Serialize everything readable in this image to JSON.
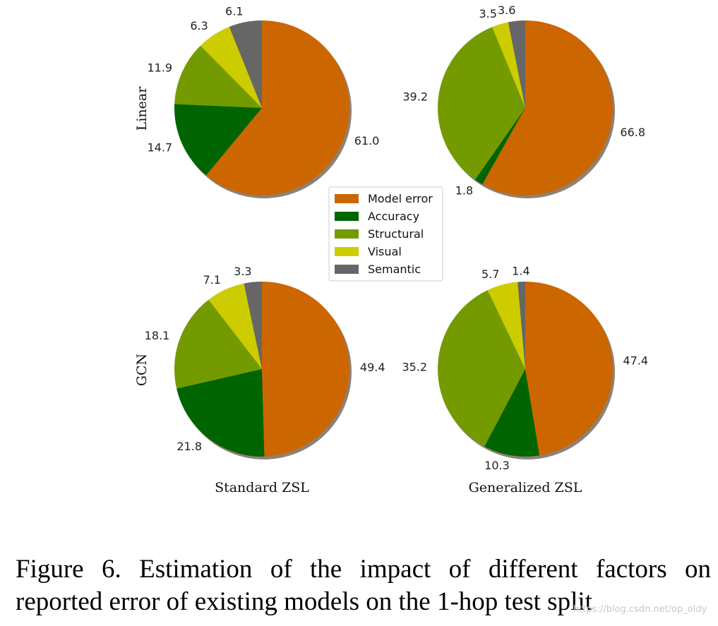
{
  "chart_data": {
    "type": "pie",
    "legend": {
      "placement": "center",
      "entries": [
        {
          "name": "Model error",
          "color": "#cc6600"
        },
        {
          "name": "Accuracy",
          "color": "#006400"
        },
        {
          "name": "Structural",
          "color": "#739b00"
        },
        {
          "name": "Visual",
          "color": "#cccc00"
        },
        {
          "name": "Semantic",
          "color": "#666666"
        }
      ]
    },
    "row_labels": [
      "Linear",
      "GCN"
    ],
    "column_labels": [
      "Standard ZSL",
      "Generalized ZSL"
    ],
    "pies": [
      {
        "row": "Linear",
        "column": "Standard ZSL",
        "values": {
          "Semantic": 6.1,
          "Visual": 6.3,
          "Structural": 11.9,
          "Accuracy": 14.7,
          "Model error": 61.0
        }
      },
      {
        "row": "Linear",
        "column": "Generalized ZSL",
        "values": {
          "Semantic": 3.6,
          "Visual": 3.5,
          "Structural": 39.2,
          "Accuracy": 1.8,
          "Model error": 66.8
        }
      },
      {
        "row": "GCN",
        "column": "Standard ZSL",
        "values": {
          "Semantic": 3.3,
          "Visual": 7.1,
          "Structural": 18.1,
          "Accuracy": 21.8,
          "Model error": 49.4
        }
      },
      {
        "row": "GCN",
        "column": "Generalized ZSL",
        "values": {
          "Semantic": 1.4,
          "Visual": 5.7,
          "Structural": 35.2,
          "Accuracy": 10.3,
          "Model error": 47.4
        }
      }
    ]
  },
  "caption": {
    "line1": "Figure 6.   Estimation of the impact of different factors on",
    "line2": "reported error of existing models on the 1-hop test split"
  },
  "watermark": "https://blog.csdn.net/op_oldy"
}
